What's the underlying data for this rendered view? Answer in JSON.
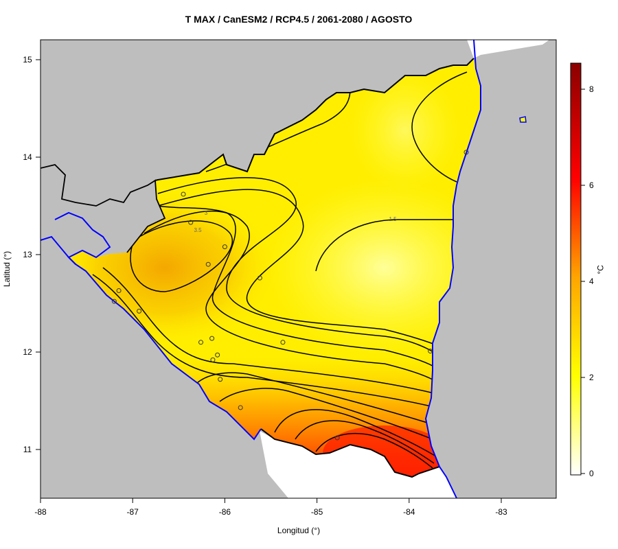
{
  "title": "T MAX / CanESM2 / RCP4.5 / 2061-2080 / AGOSTO",
  "xlabel": "Longitud (°)",
  "ylabel": "Latitud (°)",
  "colorbar": {
    "unit": "°C",
    "ticks": [
      "0",
      "2",
      "4",
      "6",
      "8"
    ],
    "colors": [
      "#ffffff",
      "#ffff00",
      "#ffa500",
      "#ff0000",
      "#8b0000"
    ]
  },
  "axes": {
    "x_ticks": [
      "-88",
      "-87",
      "-86",
      "-85",
      "-84",
      "-83"
    ],
    "y_ticks": [
      "11",
      "12",
      "13",
      "14",
      "15"
    ]
  },
  "contour_labels": [
    "3",
    "3.5",
    "1.5"
  ],
  "colors": {
    "land_outside": "#bebebe",
    "coast": "#0000ff",
    "border": "#000000"
  },
  "chart_data": {
    "type": "heatmap",
    "title": "T MAX / CanESM2 / RCP4.5 / 2061-2080 / AGOSTO",
    "xlabel": "Longitud (°)",
    "ylabel": "Latitud (°)",
    "xlim": [
      -88,
      -82.4
    ],
    "ylim": [
      10.5,
      15.2
    ],
    "value_range": [
      0,
      8.5
    ],
    "unit": "°C",
    "stations": [
      {
        "lon": -86.45,
        "lat": 13.62
      },
      {
        "lon": -86.37,
        "lat": 13.33
      },
      {
        "lon": -86.0,
        "lat": 13.08
      },
      {
        "lon": -86.18,
        "lat": 12.9
      },
      {
        "lon": -85.62,
        "lat": 12.76
      },
      {
        "lon": -87.15,
        "lat": 12.63
      },
      {
        "lon": -87.2,
        "lat": 12.52
      },
      {
        "lon": -86.93,
        "lat": 12.42
      },
      {
        "lon": -86.26,
        "lat": 12.1
      },
      {
        "lon": -86.14,
        "lat": 12.14
      },
      {
        "lon": -86.08,
        "lat": 11.97
      },
      {
        "lon": -86.13,
        "lat": 11.92
      },
      {
        "lon": -86.05,
        "lat": 11.72
      },
      {
        "lon": -85.83,
        "lat": 11.43
      },
      {
        "lon": -85.37,
        "lat": 12.1
      },
      {
        "lon": -84.78,
        "lat": 11.12
      },
      {
        "lon": -83.77,
        "lat": 12.01
      },
      {
        "lon": -83.38,
        "lat": 14.05
      }
    ]
  }
}
